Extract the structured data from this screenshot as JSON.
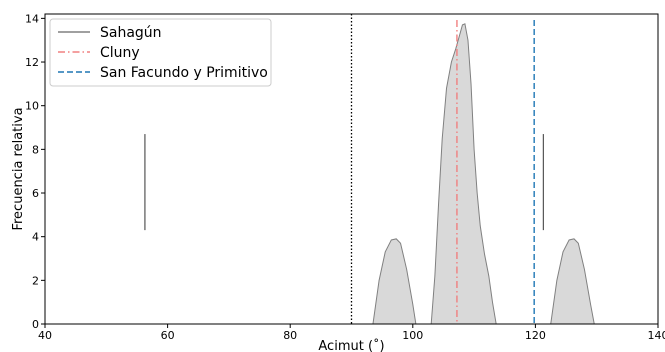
{
  "chart_data": {
    "type": "area",
    "xlabel": "Acimut (˚)",
    "ylabel": "Frecuencia relativa",
    "xlim": [
      40,
      140
    ],
    "ylim": [
      0,
      14.2
    ],
    "xticks": [
      40,
      60,
      80,
      100,
      120,
      140
    ],
    "yticks": [
      0,
      2,
      4,
      6,
      8,
      10,
      12,
      14
    ],
    "grid": false,
    "legend_position": "top-left",
    "series": [
      {
        "name": "Sahagún",
        "kind": "filled-density",
        "color": "#808080",
        "fill": "#d9d9d9",
        "x": [
          93.5,
          94.5,
          95.5,
          96.5,
          97.3,
          98.0,
          99.0,
          100.0,
          100.5
        ],
        "y": [
          0,
          2.0,
          3.3,
          3.85,
          3.9,
          3.7,
          2.5,
          0.9,
          0
        ],
        "x2": [
          103.0,
          103.6,
          104.2,
          104.8,
          105.5,
          106.3,
          107.0,
          107.6,
          108.1,
          108.5,
          109.0,
          109.5,
          110.0,
          110.5,
          111.0,
          111.7,
          112.4,
          113.0,
          113.6
        ],
        "y2": [
          0,
          2.2,
          5.5,
          8.5,
          10.8,
          12.0,
          12.6,
          13.2,
          13.7,
          13.75,
          13.0,
          11.0,
          8.0,
          6.0,
          4.5,
          3.2,
          2.2,
          1.0,
          0
        ],
        "x3": [
          122.5,
          123.5,
          124.5,
          125.5,
          126.3,
          127.0,
          128.0,
          129.0,
          129.6
        ],
        "y3": [
          0,
          2.0,
          3.3,
          3.85,
          3.9,
          3.7,
          2.5,
          0.9,
          0
        ]
      },
      {
        "name": "Cluny",
        "kind": "vline",
        "style": "dash-dot",
        "color": "#f08080",
        "x": 107.2
      },
      {
        "name": "San Facundo y Primitivo",
        "kind": "vline",
        "style": "dashed",
        "color": "#1f77b4",
        "x": 119.8
      }
    ],
    "annotations": [
      {
        "kind": "reference-vline",
        "style": "dotted",
        "color": "#000000",
        "x": 90.0
      },
      {
        "kind": "segment",
        "color": "#555555",
        "x": 56.3,
        "y_start": 4.3,
        "y_end": 8.7
      },
      {
        "kind": "segment",
        "color": "#555555",
        "x": 121.3,
        "y_start": 4.3,
        "y_end": 8.7
      }
    ]
  }
}
